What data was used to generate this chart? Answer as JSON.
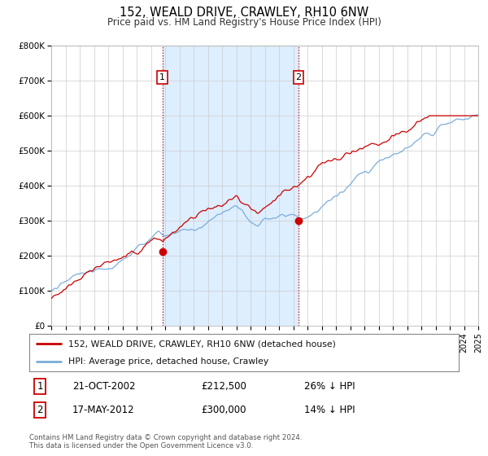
{
  "title": "152, WEALD DRIVE, CRAWLEY, RH10 6NW",
  "subtitle": "Price paid vs. HM Land Registry's House Price Index (HPI)",
  "legend_line1": "152, WEALD DRIVE, CRAWLEY, RH10 6NW (detached house)",
  "legend_line2": "HPI: Average price, detached house, Crawley",
  "annotation1_date": "21-OCT-2002",
  "annotation1_price": "£212,500",
  "annotation1_hpi": "26% ↓ HPI",
  "annotation2_date": "17-MAY-2012",
  "annotation2_price": "£300,000",
  "annotation2_hpi": "14% ↓ HPI",
  "footer_line1": "Contains HM Land Registry data © Crown copyright and database right 2024.",
  "footer_line2": "This data is licensed under the Open Government Licence v3.0.",
  "sale1_date_num": 2002.81,
  "sale1_price": 212500,
  "sale2_date_num": 2012.37,
  "sale2_price": 300000,
  "red_line_color": "#cc0000",
  "blue_line_color": "#7aadda",
  "plot_bg_color": "#ffffff",
  "shade_color": "#ddeeff",
  "grid_color": "#cccccc",
  "ylim_min": 0,
  "ylim_max": 800000,
  "xlim_min": 1995,
  "xlim_max": 2025
}
